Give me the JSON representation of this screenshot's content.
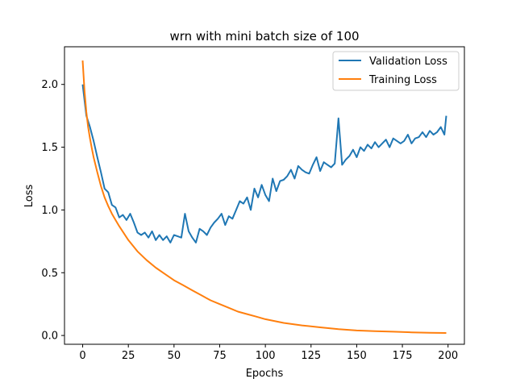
{
  "chart_data": {
    "type": "line",
    "title": "wrn with mini batch size of 100",
    "xlabel": "Epochs",
    "ylabel": "Loss",
    "xlim": [
      -9.95,
      208.95
    ],
    "ylim": [
      -0.07,
      2.3
    ],
    "xticks": [
      0,
      25,
      50,
      75,
      100,
      125,
      150,
      175,
      200
    ],
    "yticks": [
      0.0,
      0.5,
      1.0,
      1.5,
      2.0
    ],
    "ytick_labels": [
      "0.0",
      "0.5",
      "1.0",
      "1.5",
      "2.0"
    ],
    "grid": false,
    "legend_position": "top-right",
    "series": [
      {
        "name": "Validation Loss",
        "color": "#1f77b4",
        "x": [
          0,
          2,
          4,
          6,
          8,
          10,
          12,
          14,
          16,
          18,
          20,
          22,
          24,
          26,
          28,
          30,
          32,
          34,
          36,
          38,
          40,
          42,
          44,
          46,
          48,
          50,
          52,
          54,
          56,
          58,
          60,
          62,
          64,
          66,
          68,
          70,
          72,
          74,
          76,
          78,
          80,
          82,
          84,
          86,
          88,
          90,
          92,
          94,
          96,
          98,
          100,
          102,
          104,
          106,
          108,
          110,
          112,
          114,
          116,
          118,
          120,
          122,
          124,
          126,
          128,
          130,
          132,
          134,
          136,
          138,
          140,
          142,
          144,
          146,
          148,
          150,
          152,
          154,
          156,
          158,
          160,
          162,
          164,
          166,
          168,
          170,
          172,
          174,
          176,
          178,
          180,
          182,
          184,
          186,
          188,
          190,
          192,
          194,
          196,
          198,
          199
        ],
        "y": [
          2.0,
          1.75,
          1.66,
          1.55,
          1.42,
          1.3,
          1.17,
          1.14,
          1.04,
          1.02,
          0.94,
          0.96,
          0.92,
          0.97,
          0.9,
          0.82,
          0.8,
          0.82,
          0.78,
          0.83,
          0.76,
          0.8,
          0.76,
          0.79,
          0.74,
          0.8,
          0.79,
          0.78,
          0.97,
          0.83,
          0.78,
          0.74,
          0.85,
          0.83,
          0.8,
          0.86,
          0.9,
          0.93,
          0.97,
          0.88,
          0.95,
          0.93,
          1.0,
          1.07,
          1.05,
          1.1,
          1.0,
          1.17,
          1.1,
          1.2,
          1.12,
          1.07,
          1.25,
          1.15,
          1.23,
          1.24,
          1.27,
          1.32,
          1.25,
          1.35,
          1.32,
          1.3,
          1.29,
          1.36,
          1.42,
          1.31,
          1.38,
          1.36,
          1.34,
          1.37,
          1.73,
          1.36,
          1.4,
          1.43,
          1.48,
          1.42,
          1.5,
          1.47,
          1.52,
          1.49,
          1.54,
          1.5,
          1.53,
          1.56,
          1.5,
          1.57,
          1.55,
          1.53,
          1.55,
          1.6,
          1.53,
          1.57,
          1.58,
          1.62,
          1.58,
          1.63,
          1.6,
          1.62,
          1.66,
          1.6,
          1.75
        ]
      },
      {
        "name": "Training Loss",
        "color": "#ff7f0e",
        "x": [
          0,
          1,
          2,
          3,
          4,
          5,
          6,
          8,
          10,
          12,
          14,
          16,
          18,
          20,
          25,
          30,
          35,
          40,
          45,
          50,
          55,
          60,
          65,
          70,
          75,
          80,
          85,
          90,
          95,
          100,
          110,
          120,
          130,
          140,
          150,
          160,
          170,
          180,
          190,
          199
        ],
        "y": [
          2.19,
          1.95,
          1.78,
          1.66,
          1.57,
          1.49,
          1.42,
          1.3,
          1.19,
          1.1,
          1.03,
          0.97,
          0.92,
          0.87,
          0.76,
          0.67,
          0.6,
          0.54,
          0.49,
          0.44,
          0.4,
          0.36,
          0.32,
          0.28,
          0.25,
          0.22,
          0.19,
          0.17,
          0.15,
          0.13,
          0.1,
          0.08,
          0.065,
          0.05,
          0.04,
          0.035,
          0.03,
          0.025,
          0.022,
          0.02
        ]
      }
    ]
  }
}
